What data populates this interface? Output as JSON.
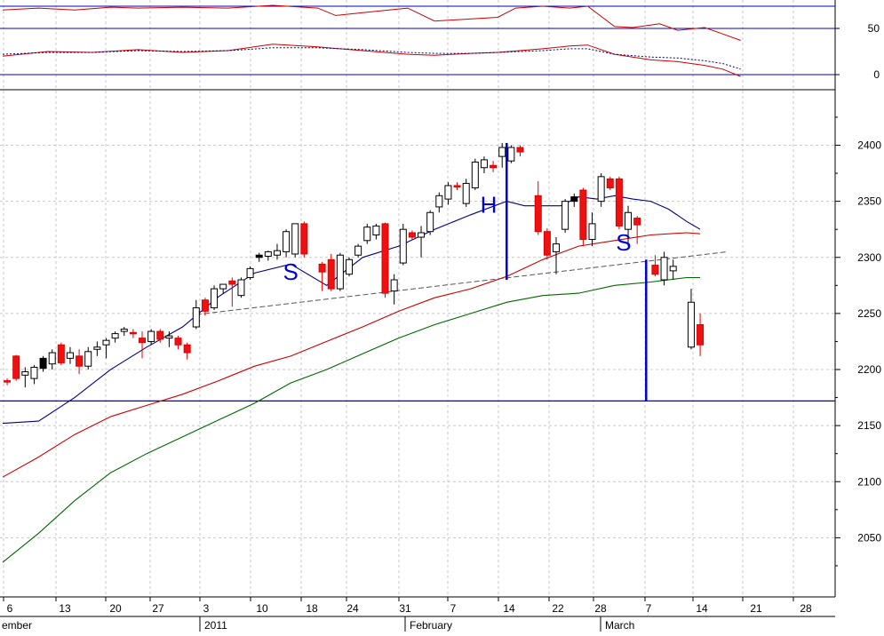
{
  "chart_data": {
    "type": "candlestick",
    "indicator_panel": {
      "y_ticks": [
        "50",
        "0"
      ],
      "reference_levels": [
        75,
        50,
        0
      ],
      "series": [
        {
          "color": "#cc0000",
          "style": "solid",
          "x": [
            0,
            4,
            8,
            12,
            15,
            20,
            25,
            30,
            35,
            37,
            40,
            45,
            48,
            55,
            57,
            60,
            63,
            65,
            68,
            70,
            73,
            75,
            78,
            80,
            82
          ],
          "y": [
            70,
            72,
            70,
            73,
            72,
            73,
            72,
            75,
            72,
            64,
            67,
            72,
            58,
            62,
            72,
            74,
            72,
            74,
            52,
            51,
            55,
            48,
            51,
            44,
            37
          ]
        },
        {
          "color": "#cc0000",
          "style": "solid",
          "x": [
            0,
            5,
            10,
            15,
            20,
            25,
            30,
            35,
            40,
            45,
            48,
            52,
            55,
            60,
            63,
            65,
            68,
            72,
            75,
            78,
            80,
            82
          ],
          "y": [
            20,
            25,
            24,
            27,
            24,
            26,
            33,
            30,
            26,
            22,
            21,
            23,
            24,
            28,
            31,
            32,
            22,
            16,
            14,
            10,
            6,
            -2
          ]
        },
        {
          "color": "#000080",
          "style": "dotted",
          "x": [
            0,
            5,
            10,
            15,
            20,
            25,
            30,
            35,
            40,
            45,
            48,
            52,
            55,
            60,
            63,
            65,
            68,
            72,
            75,
            78,
            80,
            82
          ],
          "y": [
            22,
            24,
            24,
            26,
            25,
            26,
            29,
            29,
            27,
            24,
            23,
            23,
            24,
            26,
            28,
            28,
            22,
            19,
            18,
            15,
            12,
            6
          ]
        }
      ]
    },
    "main_panel": {
      "y_ticks": [
        2400,
        2350,
        2300,
        2250,
        2200,
        2150,
        2100,
        2050
      ],
      "x_tick_labels": [
        "6",
        "13",
        "20",
        "27",
        "3",
        "10",
        "18",
        "24",
        "31",
        "7",
        "14",
        "22",
        "28",
        "7",
        "14",
        "21",
        "28"
      ],
      "month_labels": [
        "ember",
        "2011",
        "February",
        "March"
      ],
      "candles": [
        {
          "x": 0.5,
          "o": 2190,
          "h": 2192,
          "l": 2186,
          "c": 2190,
          "color": "red"
        },
        {
          "x": 1.5,
          "o": 2212,
          "h": 2213,
          "l": 2190,
          "c": 2192,
          "color": "red"
        },
        {
          "x": 2.5,
          "o": 2198,
          "h": 2202,
          "l": 2184,
          "c": 2195,
          "color": "white"
        },
        {
          "x": 3.5,
          "o": 2192,
          "h": 2204,
          "l": 2187,
          "c": 2202,
          "color": "white"
        },
        {
          "x": 4.5,
          "o": 2201,
          "h": 2212,
          "l": 2198,
          "c": 2210,
          "color": "black"
        },
        {
          "x": 5.5,
          "o": 2205,
          "h": 2218,
          "l": 2200,
          "c": 2215,
          "color": "white"
        },
        {
          "x": 6.5,
          "o": 2222,
          "h": 2224,
          "l": 2204,
          "c": 2206,
          "color": "red"
        },
        {
          "x": 7.5,
          "o": 2210,
          "h": 2220,
          "l": 2205,
          "c": 2215,
          "color": "white"
        },
        {
          "x": 8.5,
          "o": 2212,
          "h": 2218,
          "l": 2196,
          "c": 2203,
          "color": "red"
        },
        {
          "x": 9.5,
          "o": 2203,
          "h": 2220,
          "l": 2200,
          "c": 2216,
          "color": "white"
        },
        {
          "x": 10.5,
          "o": 2218,
          "h": 2225,
          "l": 2212,
          "c": 2220,
          "color": "white"
        },
        {
          "x": 11.5,
          "o": 2222,
          "h": 2228,
          "l": 2210,
          "c": 2226,
          "color": "white"
        },
        {
          "x": 12.5,
          "o": 2228,
          "h": 2234,
          "l": 2224,
          "c": 2232,
          "color": "white"
        },
        {
          "x": 13.5,
          "o": 2234,
          "h": 2238,
          "l": 2230,
          "c": 2236,
          "color": "white"
        },
        {
          "x": 14.5,
          "o": 2233,
          "h": 2236,
          "l": 2228,
          "c": 2232,
          "color": "red"
        },
        {
          "x": 15.5,
          "o": 2228,
          "h": 2234,
          "l": 2210,
          "c": 2224,
          "color": "red"
        },
        {
          "x": 16.5,
          "o": 2225,
          "h": 2236,
          "l": 2222,
          "c": 2234,
          "color": "white"
        },
        {
          "x": 17.5,
          "o": 2234,
          "h": 2236,
          "l": 2224,
          "c": 2227,
          "color": "red"
        },
        {
          "x": 18.5,
          "o": 2230,
          "h": 2234,
          "l": 2220,
          "c": 2228,
          "color": "white"
        },
        {
          "x": 19.5,
          "o": 2228,
          "h": 2230,
          "l": 2218,
          "c": 2222,
          "color": "red"
        },
        {
          "x": 20.5,
          "o": 2222,
          "h": 2224,
          "l": 2209,
          "c": 2215,
          "color": "red"
        },
        {
          "x": 21.5,
          "o": 2238,
          "h": 2262,
          "l": 2236,
          "c": 2255,
          "color": "white"
        },
        {
          "x": 22.5,
          "o": 2262,
          "h": 2264,
          "l": 2248,
          "c": 2252,
          "color": "red"
        },
        {
          "x": 23.5,
          "o": 2255,
          "h": 2275,
          "l": 2253,
          "c": 2272,
          "color": "white"
        },
        {
          "x": 24.5,
          "o": 2272,
          "h": 2276,
          "l": 2268,
          "c": 2276,
          "color": "white"
        },
        {
          "x": 25.5,
          "o": 2279,
          "h": 2282,
          "l": 2256,
          "c": 2276,
          "color": "red"
        },
        {
          "x": 26.5,
          "o": 2266,
          "h": 2282,
          "l": 2264,
          "c": 2280,
          "color": "white"
        },
        {
          "x": 27.5,
          "o": 2282,
          "h": 2292,
          "l": 2280,
          "c": 2290,
          "color": "white"
        },
        {
          "x": 28.5,
          "o": 2300,
          "h": 2304,
          "l": 2296,
          "c": 2302,
          "color": "black"
        },
        {
          "x": 29.5,
          "o": 2301,
          "h": 2306,
          "l": 2297,
          "c": 2305,
          "color": "white"
        },
        {
          "x": 30.5,
          "o": 2302,
          "h": 2312,
          "l": 2298,
          "c": 2306,
          "color": "white"
        },
        {
          "x": 31.5,
          "o": 2305,
          "h": 2325,
          "l": 2300,
          "c": 2323,
          "color": "white"
        },
        {
          "x": 32.5,
          "o": 2303,
          "h": 2330,
          "l": 2300,
          "c": 2330,
          "color": "white"
        },
        {
          "x": 33.5,
          "o": 2330,
          "h": 2332,
          "l": 2300,
          "c": 2303,
          "color": "red"
        },
        {
          "x": 35.5,
          "o": 2294,
          "h": 2296,
          "l": 2270,
          "c": 2287,
          "color": "red"
        },
        {
          "x": 36.5,
          "o": 2298,
          "h": 2303,
          "l": 2270,
          "c": 2272,
          "color": "red"
        },
        {
          "x": 37.5,
          "o": 2272,
          "h": 2304,
          "l": 2270,
          "c": 2302,
          "color": "white"
        },
        {
          "x": 38.5,
          "o": 2285,
          "h": 2300,
          "l": 2283,
          "c": 2298,
          "color": "white"
        },
        {
          "x": 39.5,
          "o": 2302,
          "h": 2312,
          "l": 2300,
          "c": 2310,
          "color": "white"
        },
        {
          "x": 40.5,
          "o": 2315,
          "h": 2330,
          "l": 2312,
          "c": 2327,
          "color": "white"
        },
        {
          "x": 41.5,
          "o": 2320,
          "h": 2330,
          "l": 2316,
          "c": 2328,
          "color": "white"
        },
        {
          "x": 42.5,
          "o": 2330,
          "h": 2331,
          "l": 2264,
          "c": 2268,
          "color": "red"
        },
        {
          "x": 43.5,
          "o": 2270,
          "h": 2285,
          "l": 2258,
          "c": 2280,
          "color": "white"
        },
        {
          "x": 44.5,
          "o": 2295,
          "h": 2330,
          "l": 2293,
          "c": 2325,
          "color": "white"
        },
        {
          "x": 45.5,
          "o": 2322,
          "h": 2324,
          "l": 2316,
          "c": 2318,
          "color": "red"
        },
        {
          "x": 46.5,
          "o": 2318,
          "h": 2328,
          "l": 2300,
          "c": 2322,
          "color": "white"
        },
        {
          "x": 47.5,
          "o": 2323,
          "h": 2342,
          "l": 2320,
          "c": 2340,
          "color": "white"
        },
        {
          "x": 48.5,
          "o": 2345,
          "h": 2358,
          "l": 2340,
          "c": 2355,
          "color": "white"
        },
        {
          "x": 49.5,
          "o": 2352,
          "h": 2367,
          "l": 2347,
          "c": 2364,
          "color": "white"
        },
        {
          "x": 50.5,
          "o": 2364,
          "h": 2367,
          "l": 2360,
          "c": 2363,
          "color": "red"
        },
        {
          "x": 51.5,
          "o": 2348,
          "h": 2370,
          "l": 2345,
          "c": 2366,
          "color": "white"
        },
        {
          "x": 52.5,
          "o": 2362,
          "h": 2388,
          "l": 2360,
          "c": 2385,
          "color": "white"
        },
        {
          "x": 53.5,
          "o": 2380,
          "h": 2390,
          "l": 2375,
          "c": 2387,
          "color": "white"
        },
        {
          "x": 54.5,
          "o": 2382,
          "h": 2386,
          "l": 2376,
          "c": 2380,
          "color": "red"
        },
        {
          "x": 55.5,
          "o": 2390,
          "h": 2402,
          "l": 2380,
          "c": 2398,
          "color": "white"
        },
        {
          "x": 56.5,
          "o": 2386,
          "h": 2400,
          "l": 2384,
          "c": 2398,
          "color": "white"
        },
        {
          "x": 57.5,
          "o": 2398,
          "h": 2400,
          "l": 2390,
          "c": 2394,
          "color": "red"
        },
        {
          "x": 59.5,
          "o": 2355,
          "h": 2368,
          "l": 2320,
          "c": 2323,
          "color": "red"
        },
        {
          "x": 60.5,
          "o": 2323,
          "h": 2326,
          "l": 2298,
          "c": 2302,
          "color": "red"
        },
        {
          "x": 61.5,
          "o": 2305,
          "h": 2318,
          "l": 2285,
          "c": 2312,
          "color": "white"
        },
        {
          "x": 62.5,
          "o": 2325,
          "h": 2352,
          "l": 2322,
          "c": 2350,
          "color": "white"
        },
        {
          "x": 63.5,
          "o": 2350,
          "h": 2357,
          "l": 2345,
          "c": 2354,
          "color": "black"
        },
        {
          "x": 64.5,
          "o": 2360,
          "h": 2362,
          "l": 2310,
          "c": 2316,
          "color": "red"
        },
        {
          "x": 65.5,
          "o": 2316,
          "h": 2340,
          "l": 2310,
          "c": 2330,
          "color": "white"
        },
        {
          "x": 66.5,
          "o": 2350,
          "h": 2375,
          "l": 2345,
          "c": 2372,
          "color": "white"
        },
        {
          "x": 67.5,
          "o": 2370,
          "h": 2372,
          "l": 2360,
          "c": 2362,
          "color": "red"
        },
        {
          "x": 68.5,
          "o": 2370,
          "h": 2372,
          "l": 2325,
          "c": 2328,
          "color": "red"
        },
        {
          "x": 69.5,
          "o": 2325,
          "h": 2346,
          "l": 2310,
          "c": 2340,
          "color": "white"
        },
        {
          "x": 70.5,
          "o": 2335,
          "h": 2337,
          "l": 2312,
          "c": 2329,
          "color": "red"
        },
        {
          "x": 72.5,
          "o": 2293,
          "h": 2302,
          "l": 2283,
          "c": 2285,
          "color": "red"
        },
        {
          "x": 73.5,
          "o": 2280,
          "h": 2305,
          "l": 2275,
          "c": 2300,
          "color": "white"
        },
        {
          "x": 74.5,
          "o": 2292,
          "h": 2298,
          "l": 2280,
          "c": 2288,
          "color": "white"
        },
        {
          "x": 76.5,
          "o": 2260,
          "h": 2272,
          "l": 2218,
          "c": 2220,
          "color": "white"
        },
        {
          "x": 77.5,
          "o": 2240,
          "h": 2250,
          "l": 2212,
          "c": 2222,
          "color": "red"
        }
      ],
      "moving_averages": [
        {
          "color": "#000080",
          "x": [
            0,
            4,
            8,
            12,
            16,
            20,
            24,
            28,
            32,
            36,
            40,
            44,
            48,
            52,
            54,
            56,
            58,
            60,
            62,
            64,
            66,
            68,
            70,
            72,
            74,
            76,
            77.5
          ],
          "y": [
            2152,
            2154,
            2175,
            2200,
            2220,
            2238,
            2265,
            2286,
            2294,
            2275,
            2300,
            2310,
            2325,
            2338,
            2344,
            2350,
            2346,
            2346,
            2346,
            2354,
            2352,
            2355,
            2352,
            2350,
            2343,
            2332,
            2325
          ]
        },
        {
          "color": "#cc0000",
          "x": [
            0,
            4,
            8,
            12,
            16,
            20,
            24,
            28,
            32,
            36,
            40,
            44,
            48,
            52,
            56,
            60,
            64,
            68,
            72,
            76,
            77.5
          ],
          "y": [
            2104,
            2122,
            2142,
            2158,
            2168,
            2178,
            2190,
            2203,
            2212,
            2225,
            2238,
            2252,
            2264,
            2272,
            2283,
            2298,
            2310,
            2315,
            2320,
            2322,
            2321
          ]
        },
        {
          "color": "#006600",
          "x": [
            0,
            4,
            8,
            12,
            16,
            20,
            24,
            28,
            32,
            36,
            40,
            44,
            48,
            52,
            56,
            60,
            64,
            68,
            72,
            76,
            77.5
          ],
          "y": [
            2028,
            2054,
            2083,
            2108,
            2125,
            2140,
            2155,
            2170,
            2188,
            2200,
            2214,
            2228,
            2240,
            2250,
            2260,
            2266,
            2268,
            2275,
            2278,
            2282,
            2282
          ]
        }
      ],
      "neckline": [
        [
          21.5,
          2249
        ],
        [
          80.5,
          2305
        ]
      ],
      "support_level": 2172,
      "annotations": [
        {
          "text": "S",
          "x": 32.0,
          "y": 2280
        },
        {
          "text": "H",
          "x": 54.0,
          "y": 2340
        },
        {
          "text": "S",
          "x": 69.0,
          "y": 2306
        }
      ],
      "pattern_lines": [
        {
          "x": 56.0,
          "y": [
            2280,
            2402
          ]
        },
        {
          "x": 71.5,
          "y": [
            2172,
            2298
          ]
        }
      ]
    }
  }
}
